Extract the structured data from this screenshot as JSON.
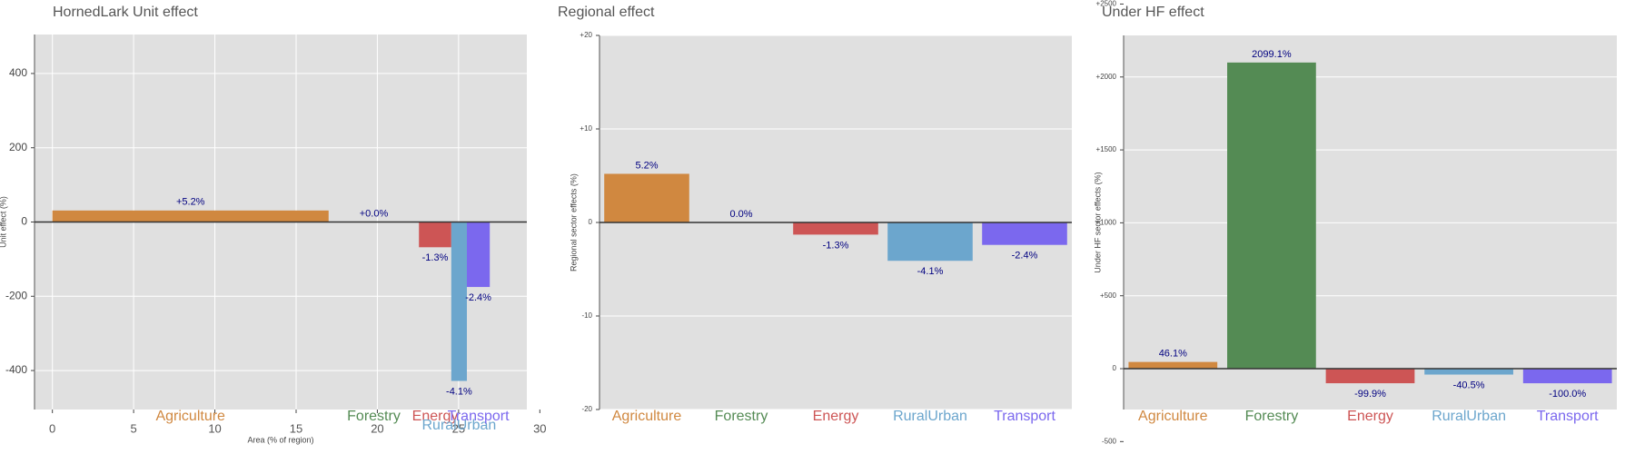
{
  "chart_data": [
    {
      "type": "bar",
      "title": "HornedLark Unit effect",
      "x_label": "Area (% of region)",
      "y_label": "Unit effect (%)",
      "categories": [
        "Agriculture",
        "Forestry",
        "Energy",
        "RuralUrban",
        "Transport"
      ],
      "colors": [
        "#d08840",
        "#548b54",
        "#cd5555",
        "#6ca6cd",
        "#7b68ee"
      ],
      "x_left": [
        0,
        17,
        22.56,
        24.55,
        25.51
      ],
      "x_right": [
        17,
        22.56,
        24.55,
        25.51,
        26.92
      ],
      "values": [
        31,
        0,
        -68,
        -428,
        -175
      ],
      "bar_labels": [
        "+5.2%",
        "+0.0%",
        "-1.3%",
        "-4.1%",
        "-2.4%"
      ],
      "xlim": [
        -1.1,
        29.2
      ],
      "xticks": [
        0,
        5,
        10,
        15,
        20,
        25,
        30
      ],
      "ylim": [
        -505,
        505
      ],
      "yticks": [
        -400,
        -200,
        0,
        200,
        400
      ],
      "grid": true
    },
    {
      "type": "bar",
      "title": "Regional effect",
      "y_label": "Regional sector effects (%)",
      "categories": [
        "Agriculture",
        "Forestry",
        "Energy",
        "RuralUrban",
        "Transport"
      ],
      "colors": [
        "#d08840",
        "#548b54",
        "#cd5555",
        "#6ca6cd",
        "#7b68ee"
      ],
      "values": [
        5.2,
        0,
        -1.3,
        -4.1,
        -2.4
      ],
      "value_labels": [
        "5.2%",
        "0.0%",
        "-1.3%",
        "-4.1%",
        "-2.4%"
      ],
      "ylim": [
        -20,
        20
      ],
      "yticks": [
        -20,
        -10,
        0,
        {
          "value": 10,
          "label": "+10"
        },
        {
          "value": 20,
          "label": "+20"
        }
      ],
      "grid": true
    },
    {
      "type": "bar",
      "title": "Under HF effect",
      "y_label": "Under HF sector effects (%)",
      "categories": [
        "Agriculture",
        "Forestry",
        "Energy",
        "RuralUrban",
        "Transport"
      ],
      "colors": [
        "#d08840",
        "#548b54",
        "#cd5555",
        "#6ca6cd",
        "#7b68ee"
      ],
      "values": [
        46.1,
        2099.1,
        -99.9,
        -40.5,
        -100.0
      ],
      "value_labels": [
        "46.1%",
        "2099.1%",
        "-99.9%",
        "-40.5%",
        "-100.0%"
      ],
      "ylim": [
        -280,
        2285
      ],
      "yticks": [
        -500,
        0,
        {
          "value": 500,
          "label": "+500"
        },
        {
          "value": 1000,
          "label": "+1000"
        },
        {
          "value": 1500,
          "label": "+1500"
        },
        {
          "value": 2000,
          "label": "+2000"
        },
        {
          "value": 2500,
          "label": "+2500"
        }
      ],
      "grid": true
    }
  ]
}
